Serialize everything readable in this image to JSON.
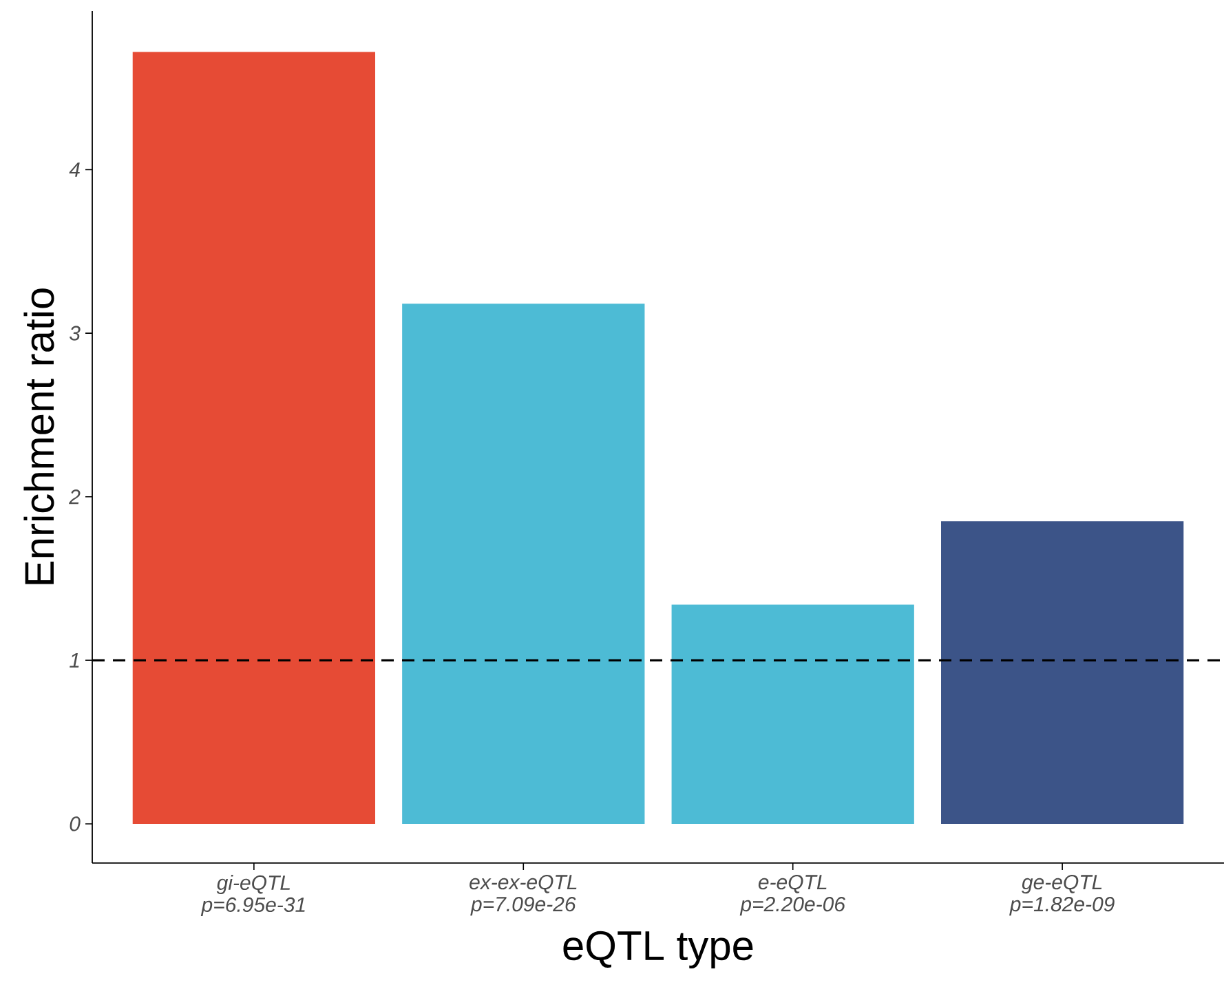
{
  "chart_data": {
    "type": "bar",
    "xlabel": "eQTL type",
    "ylabel": "Enrichment ratio",
    "categories": [
      "gi-eQTL",
      "ex-ex-eQTL",
      "e-eQTL",
      "ge-eQTL"
    ],
    "values": [
      4.72,
      3.18,
      1.34,
      1.85
    ],
    "colors": [
      "#e64b35",
      "#4dbbd5",
      "#4dbbd5",
      "#3c5488"
    ],
    "annotations": [
      "p=6.95e-31",
      "p=7.09e-26",
      "p=2.20e-06",
      "p=1.82e-09"
    ],
    "ylim": [
      -0.24,
      4.97
    ],
    "yticks": [
      0,
      1,
      2,
      3,
      4
    ],
    "ref_lines": [
      {
        "axis": "y",
        "value": 1,
        "color": "#000000",
        "line_style": "dashed"
      }
    ],
    "grid": false
  }
}
